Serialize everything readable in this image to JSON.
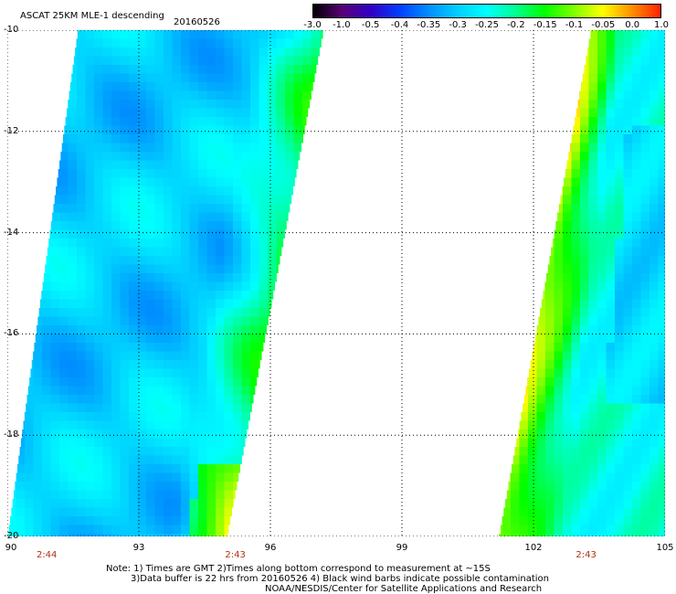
{
  "title": "ASCAT 25KM MLE-1 descending",
  "date": "20160526",
  "colorbar": {
    "labels": [
      "-3.0",
      "-1.0",
      "-0.5",
      "-0.4",
      "-0.35",
      "-0.3",
      "-0.25",
      "-0.2",
      "-0.15",
      "-0.1",
      "-0.05",
      "0.0",
      "1.0"
    ],
    "colors": [
      "#000000",
      "#5a0078",
      "#3000c8",
      "#0040ff",
      "#0090ff",
      "#00d0ff",
      "#00ffff",
      "#00ff90",
      "#00ff00",
      "#80ff00",
      "#ffff00",
      "#ff9000",
      "#ff2000"
    ]
  },
  "axes": {
    "lon_labels": [
      "90",
      "93",
      "96",
      "99",
      "102",
      "105"
    ],
    "lat_labels": [
      "-10",
      "-12",
      "-14",
      "-16",
      "-18",
      "-20"
    ],
    "lon_range": [
      90,
      105
    ],
    "lat_range": [
      -20,
      -10
    ],
    "grid": "dotted"
  },
  "times": [
    {
      "label": "2:44",
      "lon": 90.9
    },
    {
      "label": "2:43",
      "lon": 95.2
    },
    {
      "label": "2:43",
      "lon": 103.2
    }
  ],
  "swaths": [
    {
      "name": "west",
      "lat_top": -10,
      "lat_bottom": -20,
      "west_lon_top": 91.6,
      "west_lon_bottom": 90.0,
      "east_lon_top": 97.2,
      "east_lon_bottom": 95.0
    },
    {
      "name": "east",
      "lat_top": -10,
      "lat_bottom": -20,
      "west_lon_top": 103.3,
      "west_lon_bottom": 101.2,
      "east_lon_top": 105,
      "east_lon_bottom": 105
    }
  ],
  "notes": {
    "line1": "Note: 1) Times are GMT 2)Times along bottom correspond to measurement at ~15S",
    "line2": "3)Data buffer is 22 hrs from 20160526 4) Black wind barbs indicate possible contamination",
    "line3": "NOAA/NESDIS/Center for Satellite Applications and Research"
  }
}
